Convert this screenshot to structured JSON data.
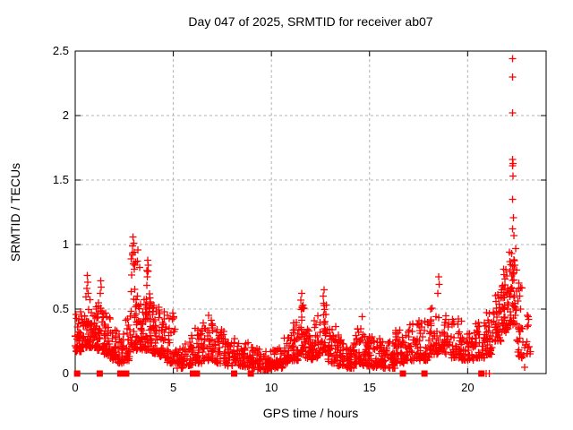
{
  "window": {
    "background_color": "#ffffff",
    "text_color": "#000000"
  },
  "chart_data": {
    "type": "scatter",
    "title": "Day 047 of 2025, SRMTID for receiver ab07",
    "xlabel": "GPS time / hours",
    "ylabel": "SRMTID / TECUs",
    "xlim": [
      0,
      24
    ],
    "ylim": [
      0,
      2.5
    ],
    "grid": true,
    "legend_position": "none",
    "marker_shape": "plus",
    "marker_color": "#ff0000",
    "grid_color": "#b3b3b3",
    "frame_color": "#000000",
    "x_ticks": [
      {
        "v": 0,
        "label": "0"
      },
      {
        "v": 5,
        "label": "5"
      },
      {
        "v": 10,
        "label": "10"
      },
      {
        "v": 15,
        "label": "15"
      },
      {
        "v": 20,
        "label": "20"
      }
    ],
    "y_ticks": [
      {
        "v": 0,
        "label": "0"
      },
      {
        "v": 0.5,
        "label": "0.5"
      },
      {
        "v": 1,
        "label": "1"
      },
      {
        "v": 1.5,
        "label": "1.5"
      },
      {
        "v": 2,
        "label": "2"
      },
      {
        "v": 2.5,
        "label": "2.5"
      }
    ],
    "seed": 47,
    "scatter_bins_comment": "dense scatter approximated as bins: [hour_start, hour_end, n_points, tecu_min, tecu_max]",
    "scatter_bins": [
      [
        0.0,
        0.35,
        40,
        0.17,
        0.48
      ],
      [
        0.35,
        0.55,
        25,
        0.2,
        0.5
      ],
      [
        0.55,
        0.75,
        25,
        0.2,
        0.6
      ],
      [
        0.75,
        1.1,
        40,
        0.2,
        0.52
      ],
      [
        1.1,
        1.45,
        35,
        0.18,
        0.58
      ],
      [
        1.45,
        1.8,
        35,
        0.15,
        0.48
      ],
      [
        1.8,
        2.15,
        35,
        0.1,
        0.35
      ],
      [
        2.15,
        2.55,
        30,
        0.08,
        0.32
      ],
      [
        2.55,
        2.8,
        25,
        0.1,
        0.45
      ],
      [
        2.8,
        3.3,
        55,
        0.18,
        0.97
      ],
      [
        3.3,
        3.6,
        35,
        0.18,
        0.6
      ],
      [
        3.6,
        3.9,
        40,
        0.18,
        0.8
      ],
      [
        3.9,
        4.3,
        40,
        0.15,
        0.55
      ],
      [
        4.3,
        4.7,
        35,
        0.12,
        0.5
      ],
      [
        4.7,
        5.15,
        35,
        0.08,
        0.45
      ],
      [
        5.15,
        5.6,
        30,
        0.04,
        0.2
      ],
      [
        5.6,
        6.1,
        30,
        0.06,
        0.3
      ],
      [
        6.1,
        6.5,
        35,
        0.08,
        0.35
      ],
      [
        6.5,
        7.0,
        40,
        0.1,
        0.42
      ],
      [
        7.0,
        7.6,
        40,
        0.08,
        0.35
      ],
      [
        7.6,
        8.2,
        40,
        0.06,
        0.28
      ],
      [
        8.2,
        8.8,
        40,
        0.05,
        0.25
      ],
      [
        8.8,
        9.4,
        40,
        0.04,
        0.22
      ],
      [
        9.4,
        10.0,
        45,
        0.03,
        0.18
      ],
      [
        10.0,
        10.6,
        45,
        0.04,
        0.2
      ],
      [
        10.6,
        11.1,
        40,
        0.08,
        0.3
      ],
      [
        11.1,
        11.4,
        30,
        0.1,
        0.4
      ],
      [
        11.4,
        11.7,
        30,
        0.15,
        0.58
      ],
      [
        11.7,
        12.1,
        35,
        0.1,
        0.38
      ],
      [
        12.1,
        12.5,
        30,
        0.12,
        0.45
      ],
      [
        12.5,
        12.85,
        30,
        0.15,
        0.6
      ],
      [
        12.85,
        13.3,
        35,
        0.08,
        0.38
      ],
      [
        13.3,
        13.7,
        35,
        0.06,
        0.3
      ],
      [
        13.7,
        14.2,
        40,
        0.04,
        0.22
      ],
      [
        14.2,
        14.7,
        40,
        0.06,
        0.35
      ],
      [
        14.7,
        15.2,
        40,
        0.06,
        0.3
      ],
      [
        15.2,
        15.7,
        40,
        0.05,
        0.28
      ],
      [
        15.7,
        16.3,
        45,
        0.04,
        0.25
      ],
      [
        16.3,
        16.9,
        45,
        0.08,
        0.35
      ],
      [
        16.9,
        17.5,
        40,
        0.1,
        0.4
      ],
      [
        17.5,
        18.1,
        40,
        0.1,
        0.42
      ],
      [
        18.1,
        18.5,
        30,
        0.15,
        0.55
      ],
      [
        18.5,
        19.1,
        40,
        0.15,
        0.48
      ],
      [
        19.1,
        19.7,
        40,
        0.12,
        0.45
      ],
      [
        19.7,
        20.3,
        40,
        0.1,
        0.32
      ],
      [
        20.3,
        20.9,
        40,
        0.12,
        0.4
      ],
      [
        20.9,
        21.3,
        35,
        0.15,
        0.48
      ],
      [
        21.3,
        21.7,
        35,
        0.25,
        0.62
      ],
      [
        21.7,
        22.1,
        45,
        0.32,
        0.85
      ],
      [
        22.1,
        22.5,
        50,
        0.38,
        1.0
      ],
      [
        22.5,
        22.85,
        25,
        0.12,
        0.72
      ],
      [
        22.85,
        23.2,
        12,
        0.15,
        0.5
      ]
    ],
    "scatter_points_comment": "distinct visible points/spike tops: [hour, TECU]",
    "scatter_points": [
      [
        0.62,
        0.76
      ],
      [
        0.64,
        0.71
      ],
      [
        0.6,
        0.66
      ],
      [
        0.66,
        0.62
      ],
      [
        1.3,
        0.72
      ],
      [
        1.33,
        0.67
      ],
      [
        1.28,
        0.62
      ],
      [
        2.95,
        1.06
      ],
      [
        2.98,
        1.01
      ],
      [
        2.92,
        0.99
      ],
      [
        3.02,
        0.94
      ],
      [
        3.7,
        0.88
      ],
      [
        3.73,
        0.84
      ],
      [
        3.66,
        0.8
      ],
      [
        4.98,
        0.47
      ],
      [
        5.02,
        0.44
      ],
      [
        6.8,
        0.45
      ],
      [
        11.55,
        0.62
      ],
      [
        11.5,
        0.57
      ],
      [
        12.68,
        0.65
      ],
      [
        12.63,
        0.6
      ],
      [
        14.62,
        0.44
      ],
      [
        18.52,
        0.75
      ],
      [
        18.55,
        0.69
      ],
      [
        18.48,
        0.62
      ],
      [
        22.28,
        2.44
      ],
      [
        22.3,
        2.3
      ],
      [
        22.29,
        2.02
      ],
      [
        22.3,
        1.66
      ],
      [
        22.32,
        1.63
      ],
      [
        22.28,
        1.61
      ],
      [
        22.31,
        1.53
      ],
      [
        22.3,
        1.35
      ],
      [
        22.33,
        1.21
      ],
      [
        22.3,
        1.12
      ],
      [
        22.35,
        1.07
      ],
      [
        22.6,
        0.7
      ],
      [
        22.65,
        0.6
      ],
      [
        22.7,
        0.5
      ],
      [
        22.75,
        0.35
      ],
      [
        9.3,
        0.03
      ],
      [
        22.9,
        0.05
      ],
      [
        23.05,
        0.45
      ],
      [
        23.1,
        0.42
      ]
    ],
    "zero_square_hours_comment": "filled square markers sitting on the y=0 axis line",
    "zero_square_hours": [
      0.1,
      1.25,
      2.3,
      2.6,
      6.0,
      6.2,
      8.1,
      8.95,
      16.7,
      17.8,
      20.7
    ],
    "zero_cross_hours_comment": "plus markers exactly at y=0",
    "zero_cross_hours": [
      20.95,
      21.1
    ]
  }
}
